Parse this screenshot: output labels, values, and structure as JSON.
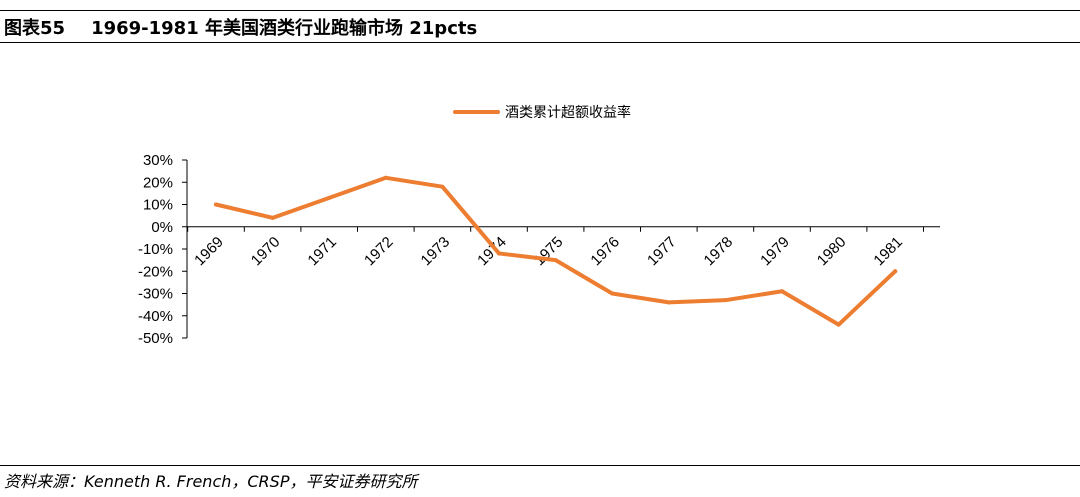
{
  "header": {
    "figure_no": "图表55",
    "title": "1969-1981 年美国酒类行业跑输市场 21pcts"
  },
  "footer": {
    "source": "资料来源：Kenneth R. French，CRSP，平安证券研究所"
  },
  "chart_data": {
    "type": "line",
    "categories": [
      "1969",
      "1970",
      "1971",
      "1972",
      "1973",
      "1974",
      "1975",
      "1976",
      "1977",
      "1978",
      "1979",
      "1980",
      "1981"
    ],
    "series": [
      {
        "name": "酒类累计超额收益率",
        "color": "#ED7D31",
        "values": [
          0.1,
          0.04,
          0.13,
          0.22,
          0.18,
          -0.12,
          -0.15,
          -0.3,
          -0.34,
          -0.33,
          -0.29,
          -0.44,
          -0.2
        ]
      }
    ],
    "yticks": [
      "30%",
      "20%",
      "10%",
      "0%",
      "-10%",
      "-20%",
      "-30%",
      "-40%",
      "-50%"
    ],
    "ylim": [
      -0.5,
      0.3
    ],
    "legend_position": "top",
    "grid": false
  }
}
